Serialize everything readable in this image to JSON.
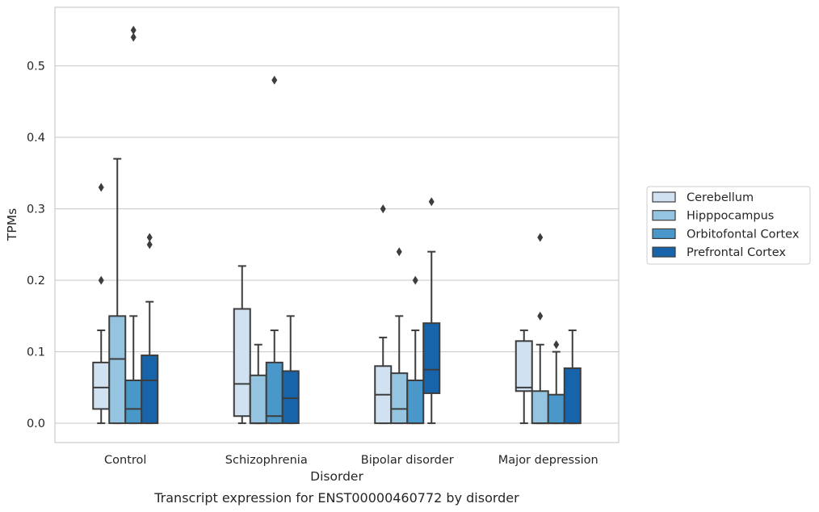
{
  "chart_data": {
    "type": "box",
    "title": "",
    "caption": "Transcript expression for ENST00000460772 by disorder",
    "xlabel": "Disorder",
    "ylabel": "TPMs",
    "ylim": [
      -0.027,
      0.582
    ],
    "yticks": [
      0.0,
      0.1,
      0.2,
      0.3,
      0.4,
      0.5
    ],
    "ytick_labels": [
      "0.0",
      "0.1",
      "0.2",
      "0.3",
      "0.4",
      "0.5"
    ],
    "grid": "horizontal",
    "legend_position": "right",
    "categories": [
      "Control",
      "Schizophrenia",
      "Bipolar disorder",
      "Major depression"
    ],
    "series": [
      {
        "name": "Cerebellum",
        "color": "#d0e1f2",
        "boxes": [
          {
            "whislo": 0.0,
            "q1": 0.02,
            "med": 0.05,
            "q3": 0.085,
            "whishi": 0.13,
            "fliers": [
              0.2,
              0.33
            ]
          },
          {
            "whislo": 0.0,
            "q1": 0.01,
            "med": 0.055,
            "q3": 0.16,
            "whishi": 0.22,
            "fliers": []
          },
          {
            "whislo": 0.0,
            "q1": 0.0,
            "med": 0.04,
            "q3": 0.08,
            "whishi": 0.12,
            "fliers": [
              0.3
            ]
          },
          {
            "whislo": 0.0,
            "q1": 0.045,
            "med": 0.05,
            "q3": 0.115,
            "whishi": 0.13,
            "fliers": []
          }
        ]
      },
      {
        "name": "Hipppocampus",
        "color": "#94c4df",
        "boxes": [
          {
            "whislo": 0.0,
            "q1": 0.0,
            "med": 0.09,
            "q3": 0.15,
            "whishi": 0.37,
            "fliers": []
          },
          {
            "whislo": 0.0,
            "q1": 0.0,
            "med": 0.0,
            "q3": 0.067,
            "whishi": 0.11,
            "fliers": []
          },
          {
            "whislo": 0.0,
            "q1": 0.0,
            "med": 0.02,
            "q3": 0.07,
            "whishi": 0.15,
            "fliers": [
              0.24
            ]
          },
          {
            "whislo": 0.0,
            "q1": 0.0,
            "med": 0.0,
            "q3": 0.045,
            "whishi": 0.11,
            "fliers": [
              0.15,
              0.26
            ]
          }
        ]
      },
      {
        "name": "Orbitofontal Cortex",
        "color": "#4a98c9",
        "boxes": [
          {
            "whislo": 0.0,
            "q1": 0.0,
            "med": 0.02,
            "q3": 0.06,
            "whishi": 0.15,
            "fliers": [
              0.54,
              0.55
            ]
          },
          {
            "whislo": 0.0,
            "q1": 0.0,
            "med": 0.01,
            "q3": 0.085,
            "whishi": 0.13,
            "fliers": [
              0.48
            ]
          },
          {
            "whislo": 0.0,
            "q1": 0.0,
            "med": 0.0,
            "q3": 0.06,
            "whishi": 0.13,
            "fliers": [
              0.2
            ]
          },
          {
            "whislo": 0.0,
            "q1": 0.0,
            "med": 0.0,
            "q3": 0.04,
            "whishi": 0.1,
            "fliers": [
              0.11
            ]
          }
        ]
      },
      {
        "name": "Prefrontal Cortex",
        "color": "#1764ab",
        "boxes": [
          {
            "whislo": 0.0,
            "q1": 0.0,
            "med": 0.06,
            "q3": 0.095,
            "whishi": 0.17,
            "fliers": [
              0.25,
              0.26
            ]
          },
          {
            "whislo": 0.0,
            "q1": 0.0,
            "med": 0.035,
            "q3": 0.073,
            "whishi": 0.15,
            "fliers": []
          },
          {
            "whislo": 0.0,
            "q1": 0.042,
            "med": 0.075,
            "q3": 0.14,
            "whishi": 0.24,
            "fliers": [
              0.31
            ]
          },
          {
            "whislo": 0.0,
            "q1": 0.0,
            "med": 0.0,
            "q3": 0.077,
            "whishi": 0.13,
            "fliers": []
          }
        ]
      }
    ]
  }
}
